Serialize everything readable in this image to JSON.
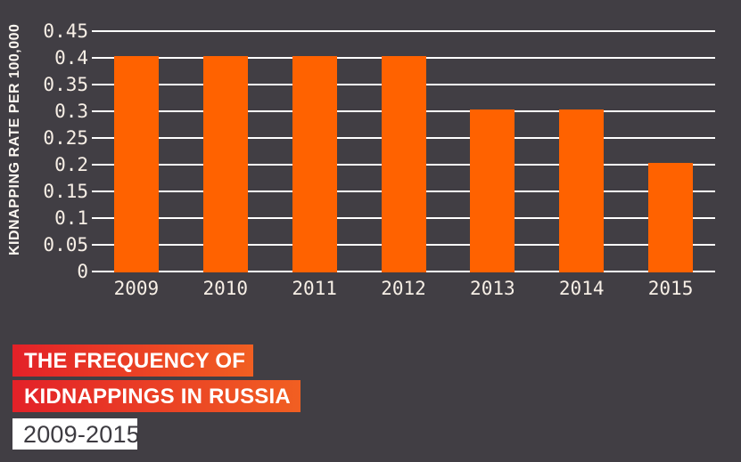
{
  "chart_data": {
    "type": "bar",
    "categories": [
      "2009",
      "2010",
      "2011",
      "2012",
      "2013",
      "2014",
      "2015"
    ],
    "values": [
      0.405,
      0.405,
      0.405,
      0.405,
      0.305,
      0.305,
      0.205
    ],
    "title": "THE FREQUENCY OF KIDNAPPINGS IN RUSSIA",
    "subtitle": "2009-2015",
    "xlabel": "",
    "ylabel": "KIDNAPPING RATE PER 100,000",
    "ylim": [
      0,
      0.45
    ],
    "yticks": [
      0,
      0.05,
      0.1,
      0.15,
      0.2,
      0.25,
      0.3,
      0.35,
      0.4,
      0.45
    ],
    "ytick_labels": [
      "0",
      "0.05",
      "0.1",
      "0.15",
      "0.2",
      "0.25",
      "0.3",
      "0.35",
      "0.4",
      "0.45"
    ],
    "grid": true,
    "legend": "none",
    "bar_color": "#ff6200",
    "background_color": "#413e44",
    "gridline_color": "#ffffff",
    "tick_label_color": "#f7efe6"
  },
  "title_block": {
    "line1": "THE FREQUENCY OF",
    "line2": "KIDNAPPINGS IN RUSSIA",
    "line3": "2009-2015",
    "banner_gradient_start": "#e32128",
    "banner_gradient_end": "#f15f22",
    "banner_text_color": "#ffffff",
    "date_bg": "#ffffff",
    "date_text_color": "#3d3b41"
  }
}
